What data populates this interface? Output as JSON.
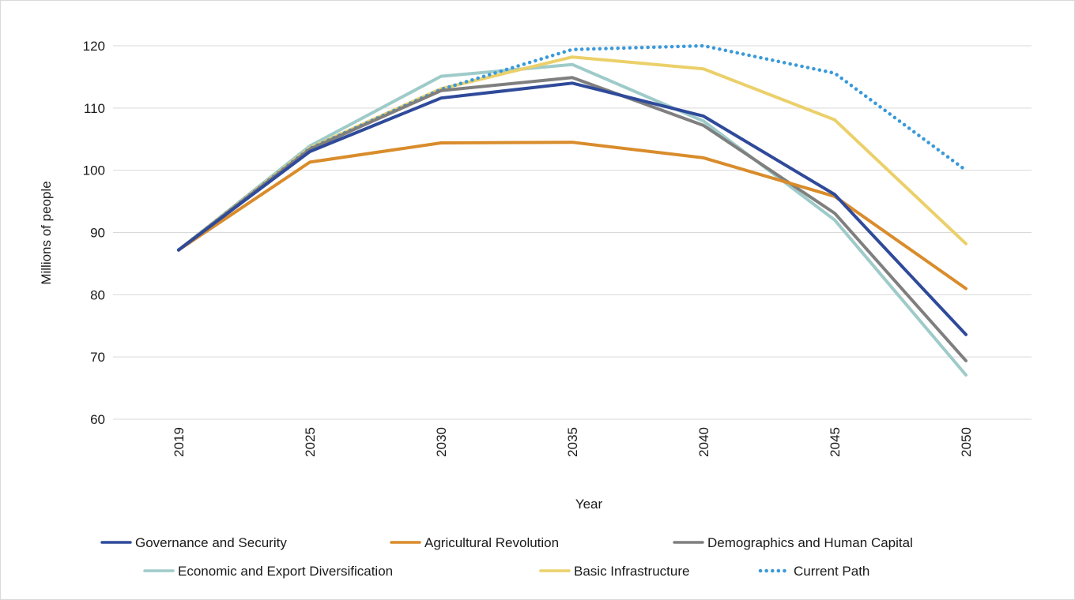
{
  "chart_data": {
    "type": "line",
    "title": "",
    "xlabel": "Year",
    "ylabel": "Millions of people",
    "categories": [
      "2019",
      "2025",
      "2030",
      "2035",
      "2040",
      "2045",
      "2050"
    ],
    "ylim": [
      60,
      120
    ],
    "yticks": [
      60,
      70,
      80,
      90,
      100,
      110,
      120
    ],
    "grid": "horizontal",
    "legend_position": "bottom",
    "series": [
      {
        "name": "Governance and Security",
        "color": "#2f4a9a",
        "style": "solid",
        "values": [
          87.2,
          103.0,
          111.6,
          114.0,
          108.7,
          96.1,
          73.6
        ]
      },
      {
        "name": "Agricultural Revolution",
        "color": "#d98c2b",
        "style": "solid",
        "values": [
          87.2,
          101.3,
          104.4,
          104.5,
          102.0,
          95.8,
          81.0
        ]
      },
      {
        "name": "Demographics and Human Capital",
        "color": "#7f7f7f",
        "style": "solid",
        "values": [
          87.2,
          103.4,
          112.8,
          114.9,
          107.2,
          93.1,
          69.4
        ]
      },
      {
        "name": "Economic and Export Diversification",
        "color": "#9ecbc9",
        "style": "solid",
        "values": [
          87.2,
          103.9,
          115.1,
          117.0,
          107.9,
          92.0,
          67.1
        ]
      },
      {
        "name": "Basic Infrastructure",
        "color": "#ebd06a",
        "style": "solid",
        "values": [
          87.2,
          103.6,
          113.1,
          118.2,
          116.3,
          108.1,
          88.2
        ]
      },
      {
        "name": "Current Path",
        "color": "#3a9ad9",
        "style": "dotted",
        "values": [
          87.2,
          103.5,
          113.0,
          119.4,
          120.0,
          115.6,
          100.0
        ]
      }
    ]
  }
}
